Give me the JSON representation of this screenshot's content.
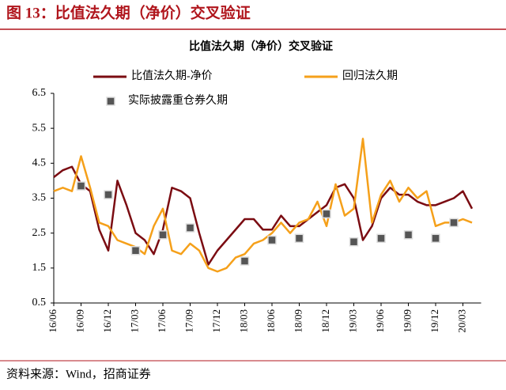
{
  "figure_label": "图 13：比值法久期（净价）交叉验证",
  "source": "资料来源：Wind，招商证券",
  "chart_data": {
    "type": "line",
    "title": "比值法久期（净价）交叉验证",
    "categories": [
      "16/06",
      null,
      null,
      "16/09",
      null,
      null,
      "16/12",
      null,
      null,
      "17/03",
      null,
      null,
      "17/06",
      null,
      null,
      "17/09",
      null,
      null,
      "17/12",
      null,
      null,
      "18/03",
      null,
      null,
      "18/06",
      null,
      null,
      "18/09",
      null,
      null,
      "18/12",
      null,
      null,
      "19/03",
      null,
      null,
      "19/06",
      null,
      null,
      "19/09",
      null,
      null,
      "19/12",
      null,
      null,
      "20/03",
      null
    ],
    "series": [
      {
        "name": "比值法久期-净价",
        "color": "#7b0c12",
        "mode": "line",
        "values": [
          4.1,
          4.3,
          4.4,
          3.9,
          3.7,
          2.6,
          2.0,
          4.0,
          3.3,
          2.5,
          2.3,
          1.9,
          2.6,
          3.8,
          3.7,
          3.5,
          2.5,
          1.6,
          2.0,
          2.3,
          2.6,
          2.9,
          2.9,
          2.6,
          2.6,
          3.0,
          2.7,
          2.7,
          2.9,
          3.1,
          3.3,
          3.8,
          3.9,
          3.5,
          2.3,
          2.7,
          3.5,
          3.8,
          3.6,
          3.6,
          3.4,
          3.3,
          3.3,
          3.4,
          3.5,
          3.7,
          3.2
        ]
      },
      {
        "name": "回归法久期",
        "color": "#f5a01a",
        "mode": "line",
        "values": [
          3.7,
          3.8,
          3.7,
          4.7,
          3.8,
          2.8,
          2.7,
          2.3,
          2.2,
          2.1,
          1.9,
          2.7,
          3.2,
          2.0,
          1.9,
          2.2,
          2.0,
          1.5,
          1.4,
          1.5,
          1.8,
          1.9,
          2.2,
          2.3,
          2.5,
          2.8,
          2.5,
          2.8,
          2.9,
          3.4,
          2.7,
          3.9,
          3.0,
          3.2,
          5.2,
          2.8,
          3.6,
          4.0,
          3.4,
          3.8,
          3.5,
          3.7,
          2.7,
          2.8,
          2.8,
          2.9,
          2.8
        ]
      },
      {
        "name": "实际披露重仓券久期",
        "color": "#555555",
        "mode": "marker",
        "values": [
          null,
          null,
          null,
          3.85,
          null,
          null,
          3.6,
          null,
          null,
          2.0,
          null,
          null,
          2.45,
          null,
          null,
          2.65,
          null,
          null,
          null,
          null,
          null,
          1.7,
          null,
          null,
          2.3,
          null,
          null,
          2.35,
          null,
          null,
          3.05,
          null,
          null,
          2.25,
          null,
          null,
          2.35,
          null,
          null,
          2.45,
          null,
          null,
          2.35,
          null,
          2.8,
          null,
          null
        ]
      }
    ],
    "ylim": [
      0.5,
      6.5
    ],
    "yticks": [
      0.5,
      1.5,
      2.5,
      3.5,
      4.5,
      5.5,
      6.5
    ],
    "grid": false
  }
}
